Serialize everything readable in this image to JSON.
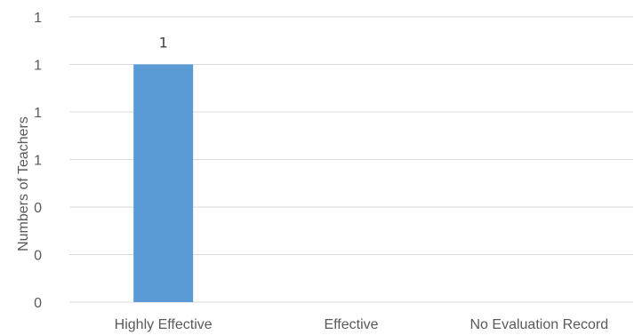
{
  "chart_data": {
    "type": "bar",
    "ylabel": "Numbers of Teachers",
    "categories": [
      "Highly Effective",
      "Effective",
      "No Evaluation Record"
    ],
    "values": [
      1,
      0,
      0
    ],
    "data_labels": [
      "1",
      "",
      ""
    ],
    "ylim": [
      0,
      1.2
    ],
    "y_ticks": [
      0,
      0.2,
      0.4,
      0.6,
      0.8,
      1.0,
      1.2
    ],
    "y_tick_labels": [
      "0",
      "0",
      "0",
      "1",
      "1",
      "1",
      "1"
    ],
    "grid": true,
    "legend": "none",
    "bar_color": "#5b9bd5"
  }
}
